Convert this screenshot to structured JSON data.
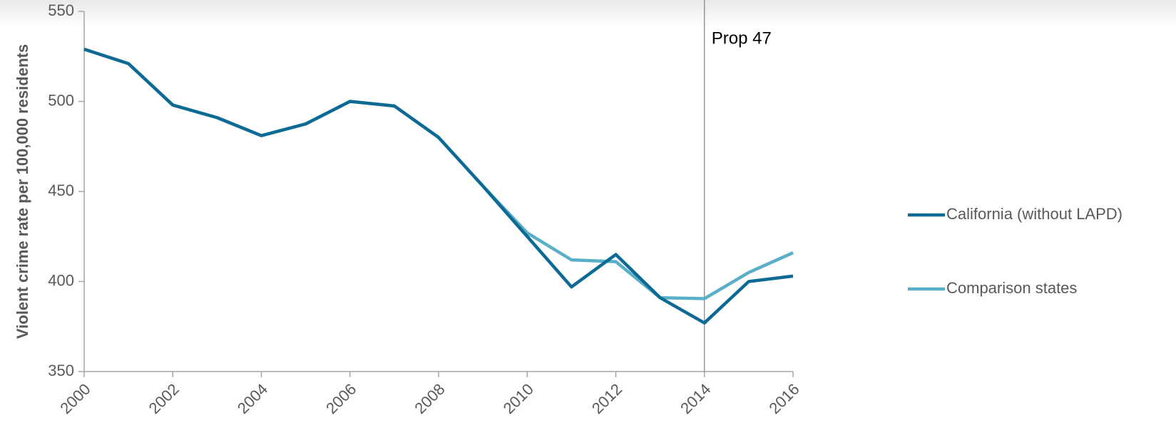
{
  "chart_data": {
    "type": "line",
    "y_label": "Violent crime rate per 100,000 residents",
    "x": [
      2000,
      2001,
      2002,
      2003,
      2004,
      2005,
      2006,
      2007,
      2008,
      2009,
      2010,
      2011,
      2012,
      2013,
      2014,
      2015,
      2016
    ],
    "series": [
      {
        "name": "California (without LAPD)",
        "color": "#0d6a94",
        "values": [
          529,
          521,
          498,
          491,
          481,
          487.5,
          500,
          497.5,
          480,
          453,
          425,
          397,
          415,
          391,
          377,
          400,
          403
        ]
      },
      {
        "name": "Comparison states",
        "color": "#5aafc8",
        "values": [
          529,
          521,
          498,
          491,
          481,
          487.5,
          500,
          497.5,
          480,
          453,
          427,
          412,
          411,
          391,
          390.5,
          405,
          416
        ]
      }
    ],
    "xlim": [
      2000,
      2016
    ],
    "xticks": [
      2000,
      2002,
      2004,
      2006,
      2008,
      2010,
      2012,
      2014,
      2016
    ],
    "ylim": [
      350,
      550
    ],
    "yticks": [
      350,
      400,
      450,
      500,
      550
    ],
    "grid": false,
    "legend": "right",
    "annotation": {
      "text": "Prop 47",
      "x": 2014
    }
  }
}
